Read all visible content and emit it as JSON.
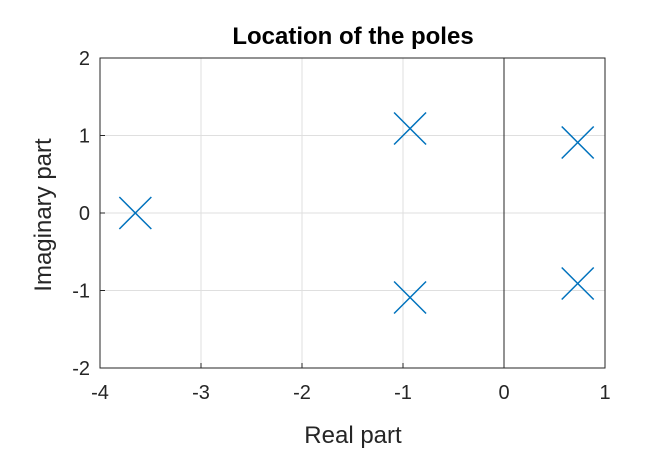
{
  "chart_data": {
    "type": "scatter",
    "title": "Location of the poles",
    "xlabel": "Real part",
    "ylabel": "Imaginary part",
    "xlim": [
      -4,
      1
    ],
    "ylim": [
      -2,
      2
    ],
    "xticks": [
      "-4",
      "-3",
      "-2",
      "-1",
      "0",
      "1"
    ],
    "yticks": [
      "-2",
      "-1",
      "0",
      "1",
      "2"
    ],
    "grid": true,
    "marker": "x",
    "marker_color": "#0072BD",
    "series": [
      {
        "points": [
          {
            "x": -3.65,
            "y": 0
          },
          {
            "x": -0.93,
            "y": 1.09
          },
          {
            "x": -0.93,
            "y": -1.09
          },
          {
            "x": 0.73,
            "y": 0.91
          },
          {
            "x": 0.73,
            "y": -0.91
          }
        ]
      }
    ],
    "reference_lines": [
      {
        "axis": "x",
        "value": 0
      }
    ]
  }
}
